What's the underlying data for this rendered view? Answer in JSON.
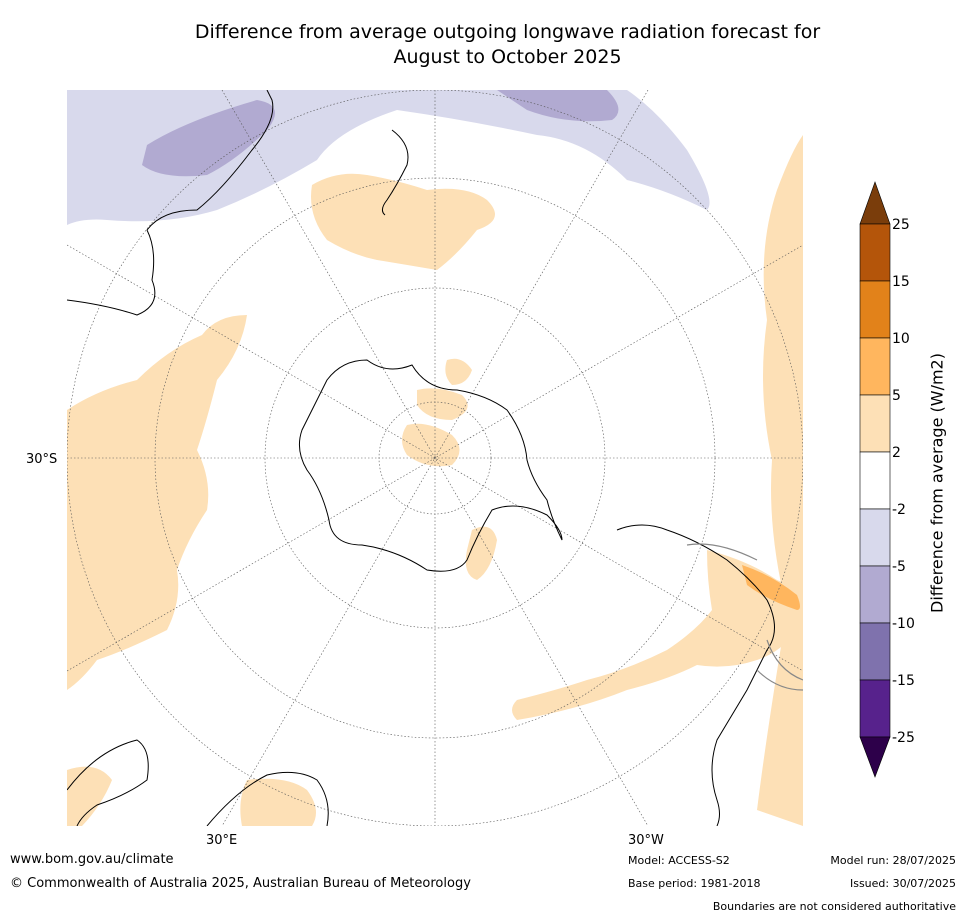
{
  "title_line1": "Difference from average outgoing longwave radiation forecast for",
  "title_line2": "August to October 2025",
  "map_labels": {
    "lat_30s": "30°S",
    "lon_30e": "30°E",
    "lon_30w": "30°W"
  },
  "colorbar": {
    "title": "Difference from average (W/m2)",
    "ticks": [
      "25",
      "15",
      "10",
      "5",
      "2",
      "-2",
      "-5",
      "-10",
      "-15",
      "-25"
    ],
    "colors": [
      "#7a3d0b",
      "#b4550a",
      "#e2821a",
      "#ffb65e",
      "#fde0b6",
      "#ffffff",
      "#d8d9ec",
      "#b1aad1",
      "#7f72ad",
      "#57228c",
      "#2d004a"
    ]
  },
  "footer": {
    "website": "www.bom.gov.au/climate",
    "copyright": "© Commonwealth of Australia 2025, Australian Bureau of Meteorology",
    "model": "Model: ACCESS-S2",
    "base_period": "Base period: 1981-2018",
    "model_run": "Model run: 28/07/2025",
    "issued": "Issued: 30/07/2025",
    "disclaimer": "Boundaries are not considered authoritative"
  }
}
